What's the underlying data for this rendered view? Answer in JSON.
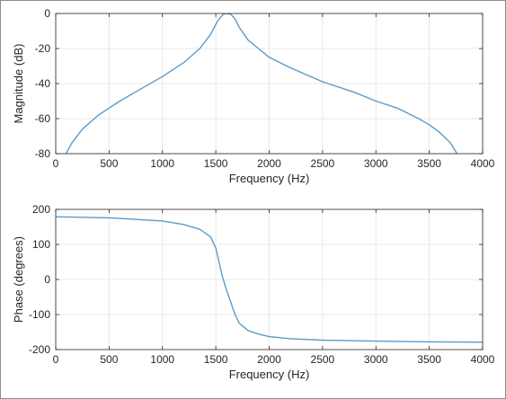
{
  "chart_data": [
    {
      "type": "line",
      "xlabel": "Frequency (Hz)",
      "ylabel": "Magnitude (dB)",
      "xlim": [
        0,
        4000
      ],
      "ylim": [
        -80,
        0
      ],
      "xticks": [
        0,
        500,
        1000,
        1500,
        2000,
        2500,
        3000,
        3500,
        4000
      ],
      "yticks": [
        -80,
        -60,
        -40,
        -20,
        0
      ],
      "grid": true,
      "line_color": "#5b9bc8",
      "series": [
        {
          "x": [
            80,
            150,
            250,
            400,
            600,
            800,
            1000,
            1200,
            1350,
            1450,
            1520,
            1570,
            1600,
            1640,
            1680,
            1720,
            1800,
            1900,
            2000,
            2200,
            2500,
            2800,
            3000,
            3200,
            3400,
            3500,
            3600,
            3700,
            3760
          ],
          "y": [
            -82,
            -74,
            -66,
            -58,
            -50,
            -43,
            -36,
            -28,
            -20,
            -12,
            -4,
            -0.4,
            0,
            -0.4,
            -3,
            -8,
            -15,
            -20,
            -25,
            -31,
            -39,
            -45,
            -50,
            -54,
            -60,
            -63.5,
            -68,
            -74,
            -80
          ]
        }
      ]
    },
    {
      "type": "line",
      "xlabel": "Frequency (Hz)",
      "ylabel": "Phase (degrees)",
      "xlim": [
        0,
        4000
      ],
      "ylim": [
        -200,
        200
      ],
      "xticks": [
        0,
        500,
        1000,
        1500,
        2000,
        2500,
        3000,
        3500,
        4000
      ],
      "yticks": [
        -200,
        -100,
        0,
        100,
        200
      ],
      "grid": true,
      "line_color": "#5b9bc8",
      "series": [
        {
          "x": [
            0,
            500,
            1000,
            1200,
            1350,
            1450,
            1500,
            1530,
            1560,
            1600,
            1640,
            1680,
            1720,
            1800,
            1900,
            2000,
            2200,
            2500,
            3000,
            3500,
            4000
          ],
          "y": [
            179,
            176,
            167,
            157,
            143,
            122,
            90,
            50,
            10,
            -30,
            -65,
            -100,
            -125,
            -145,
            -156,
            -163,
            -169,
            -173,
            -176,
            -178,
            -179
          ]
        }
      ]
    }
  ]
}
